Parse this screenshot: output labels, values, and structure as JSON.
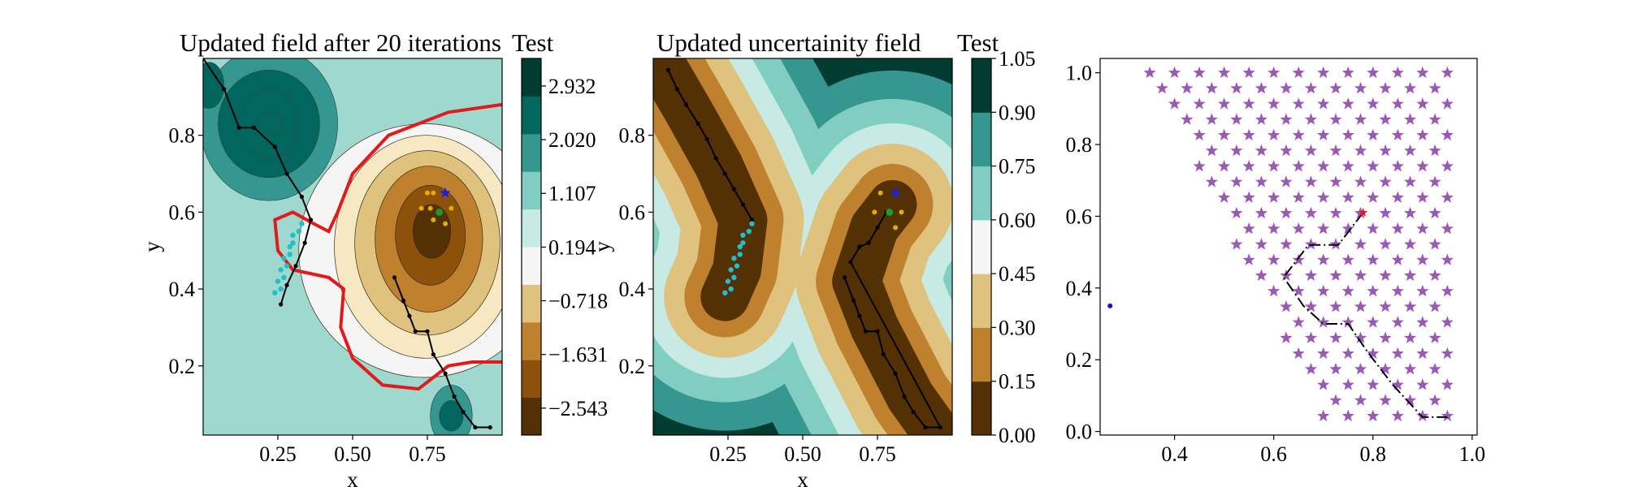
{
  "colors": {
    "brbg": [
      "#543005",
      "#8c510a",
      "#bf812d",
      "#dfc27d",
      "#f6e8c3",
      "#f5f5f5",
      "#c7eae5",
      "#80cdc1",
      "#35978f",
      "#01665e",
      "#003c30"
    ],
    "boundary": "#e31a1c",
    "contour_line": "#ffee33",
    "star": "#9b59b6",
    "path": "#000000",
    "cyan_points": "#20c0c8",
    "blue_star": "#1f1fd8",
    "green_dot": "#1a9a30",
    "yellow_dot": "#e0b000",
    "blue_dot": "#1010c0"
  },
  "chart_data": [
    {
      "type": "contour",
      "title": "Updated field after 20 iterations",
      "xlabel": "x",
      "ylabel": "y",
      "xlim": [
        0.0,
        1.0
      ],
      "ylim": [
        0.02,
        1.0
      ],
      "xticks": [
        "0.25",
        "0.50",
        "0.75"
      ],
      "xtick_values": [
        0.25,
        0.5,
        0.75
      ],
      "yticks": [
        "0.2",
        "0.4",
        "0.6",
        "0.8"
      ],
      "ytick_values": [
        0.2,
        0.4,
        0.6,
        0.8
      ],
      "colorbar": {
        "title": "Test",
        "ticks": [
          "2.932",
          "2.020",
          "1.107",
          "0.194",
          "−0.718",
          "−1.631",
          "−2.543"
        ],
        "tick_values": [
          2.932,
          2.02,
          1.107,
          0.194,
          -0.718,
          -1.631,
          -2.543
        ],
        "range": [
          -3.0,
          3.4
        ]
      },
      "boundary_level": 0.0,
      "path_points": [
        [
          0.0,
          1.0
        ],
        [
          0.07,
          0.92
        ],
        [
          0.12,
          0.82
        ],
        [
          0.17,
          0.82
        ],
        [
          0.24,
          0.77
        ],
        [
          0.28,
          0.7
        ],
        [
          0.33,
          0.64
        ],
        [
          0.36,
          0.58
        ],
        [
          0.34,
          0.52
        ],
        [
          0.31,
          0.46
        ],
        [
          0.28,
          0.41
        ],
        [
          0.26,
          0.36
        ]
      ],
      "path_points_right": [
        [
          0.64,
          0.43
        ],
        [
          0.67,
          0.37
        ],
        [
          0.69,
          0.33
        ],
        [
          0.71,
          0.29
        ],
        [
          0.75,
          0.29
        ],
        [
          0.77,
          0.23
        ],
        [
          0.81,
          0.18
        ],
        [
          0.84,
          0.12
        ],
        [
          0.87,
          0.08
        ],
        [
          0.91,
          0.04
        ],
        [
          0.96,
          0.04
        ]
      ],
      "cyan_points": [
        [
          0.24,
          0.39
        ],
        [
          0.26,
          0.4
        ],
        [
          0.25,
          0.42
        ],
        [
          0.27,
          0.43
        ],
        [
          0.26,
          0.45
        ],
        [
          0.28,
          0.46
        ],
        [
          0.27,
          0.48
        ],
        [
          0.29,
          0.49
        ],
        [
          0.29,
          0.51
        ],
        [
          0.3,
          0.52
        ],
        [
          0.3,
          0.54
        ],
        [
          0.32,
          0.55
        ],
        [
          0.33,
          0.57
        ]
      ],
      "blue_star": [
        0.81,
        0.65
      ],
      "green_dot": [
        0.79,
        0.6
      ],
      "yellow_dots": [
        [
          0.73,
          0.61
        ],
        [
          0.76,
          0.61
        ],
        [
          0.83,
          0.61
        ],
        [
          0.77,
          0.65
        ],
        [
          0.75,
          0.65
        ],
        [
          0.81,
          0.57
        ],
        [
          0.77,
          0.58
        ]
      ]
    },
    {
      "type": "contour",
      "title": "Updated uncertainity field",
      "xlabel": "x",
      "ylabel": "y",
      "xlim": [
        0.0,
        1.0
      ],
      "ylim": [
        0.02,
        1.0
      ],
      "xticks": [
        "0.25",
        "0.50",
        "0.75"
      ],
      "xtick_values": [
        0.25,
        0.5,
        0.75
      ],
      "yticks": [
        "0.2",
        "0.4",
        "0.6",
        "0.8"
      ],
      "ytick_values": [
        0.2,
        0.4,
        0.6,
        0.8
      ],
      "colorbar": {
        "title": "Test",
        "ticks": [
          "0.00",
          "0.15",
          "0.30",
          "0.45",
          "0.60",
          "0.75",
          "0.90",
          "1.05"
        ],
        "tick_values": [
          0.0,
          0.15,
          0.3,
          0.45,
          0.6,
          0.75,
          0.9,
          1.05
        ],
        "range": [
          0.0,
          1.05
        ]
      },
      "path_points": [
        [
          0.05,
          0.97
        ],
        [
          0.08,
          0.92
        ],
        [
          0.11,
          0.88
        ],
        [
          0.15,
          0.83
        ],
        [
          0.18,
          0.79
        ],
        [
          0.21,
          0.74
        ],
        [
          0.24,
          0.7
        ],
        [
          0.27,
          0.66
        ],
        [
          0.3,
          0.62
        ],
        [
          0.33,
          0.58
        ]
      ],
      "path_points_right": [
        [
          0.64,
          0.43
        ],
        [
          0.67,
          0.37
        ],
        [
          0.69,
          0.33
        ],
        [
          0.71,
          0.29
        ],
        [
          0.75,
          0.29
        ],
        [
          0.77,
          0.23
        ],
        [
          0.81,
          0.18
        ],
        [
          0.84,
          0.12
        ],
        [
          0.87,
          0.08
        ],
        [
          0.91,
          0.04
        ],
        [
          0.96,
          0.04
        ],
        [
          0.66,
          0.47
        ],
        [
          0.69,
          0.51
        ],
        [
          0.72,
          0.52
        ],
        [
          0.75,
          0.56
        ],
        [
          0.78,
          0.6
        ]
      ],
      "cyan_points": [
        [
          0.24,
          0.39
        ],
        [
          0.26,
          0.4
        ],
        [
          0.25,
          0.42
        ],
        [
          0.27,
          0.43
        ],
        [
          0.26,
          0.45
        ],
        [
          0.28,
          0.46
        ],
        [
          0.27,
          0.48
        ],
        [
          0.29,
          0.49
        ],
        [
          0.29,
          0.51
        ],
        [
          0.3,
          0.52
        ],
        [
          0.3,
          0.54
        ],
        [
          0.32,
          0.55
        ],
        [
          0.33,
          0.57
        ]
      ],
      "blue_star": [
        0.81,
        0.65
      ],
      "green_dot": [
        0.79,
        0.6
      ],
      "yellow_dots": [
        [
          0.76,
          0.65
        ],
        [
          0.74,
          0.6
        ],
        [
          0.83,
          0.6
        ],
        [
          0.81,
          0.56
        ]
      ]
    },
    {
      "type": "scatter",
      "title": "",
      "xlim": [
        0.25,
        1.01
      ],
      "ylim": [
        -0.01,
        1.04
      ],
      "xticks": [
        "0.4",
        "0.6",
        "0.8",
        "1.0"
      ],
      "xtick_values": [
        0.4,
        0.6,
        0.8,
        1.0
      ],
      "yticks": [
        "0.0",
        "0.2",
        "0.4",
        "0.6",
        "0.8",
        "1.0"
      ],
      "ytick_values": [
        0.0,
        0.2,
        0.4,
        0.6,
        0.8,
        1.0
      ],
      "star_grid": {
        "row_y_start": 1.0,
        "row_y_step": -0.0435,
        "rows": 23,
        "x_step": 0.05,
        "x_max": 0.95,
        "x_left_top": 0.35,
        "x_left_bottom": 0.7
      },
      "path_points": [
        [
          0.78,
          0.61
        ],
        [
          0.73,
          0.52
        ],
        [
          0.67,
          0.52
        ],
        [
          0.62,
          0.43
        ],
        [
          0.66,
          0.35
        ],
        [
          0.7,
          0.3
        ],
        [
          0.75,
          0.3
        ],
        [
          0.79,
          0.22
        ],
        [
          0.84,
          0.13
        ],
        [
          0.9,
          0.04
        ],
        [
          0.95,
          0.04
        ]
      ],
      "red_star": [
        0.78,
        0.61
      ],
      "blue_dot": [
        0.27,
        0.35
      ]
    }
  ]
}
